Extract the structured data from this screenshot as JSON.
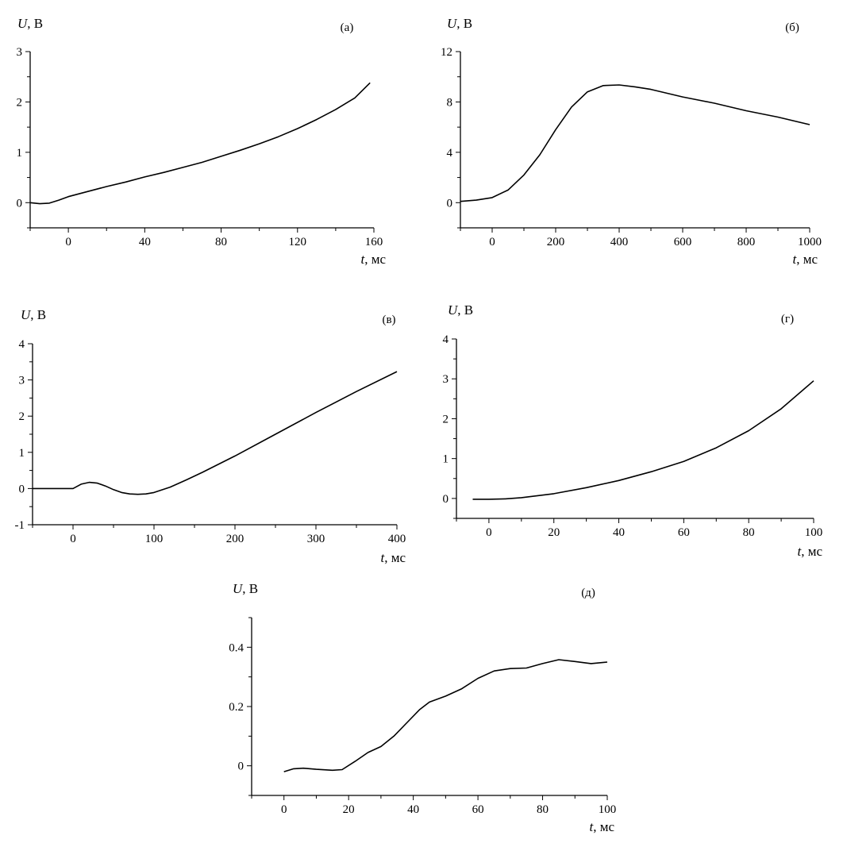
{
  "chart_data": [
    {
      "type": "line",
      "panel_label": "(а)",
      "ylabel_var": "U",
      "ylabel_unit": ", В",
      "xlabel_var": "t",
      "xlabel_unit": ", мс",
      "xlim": [
        -20,
        160
      ],
      "ylim": [
        -0.5,
        3
      ],
      "xticks": [
        0,
        40,
        80,
        120,
        160
      ],
      "yticks": [
        0,
        1,
        2,
        3
      ],
      "series": [
        {
          "x": [
            -20,
            -15,
            -10,
            -5,
            0,
            10,
            20,
            30,
            40,
            50,
            60,
            70,
            80,
            90,
            100,
            110,
            120,
            130,
            140,
            150,
            158
          ],
          "y": [
            0.0,
            -0.02,
            -0.01,
            0.05,
            0.12,
            0.22,
            0.32,
            0.41,
            0.51,
            0.6,
            0.7,
            0.8,
            0.92,
            1.04,
            1.17,
            1.31,
            1.47,
            1.65,
            1.85,
            2.08,
            2.38
          ]
        }
      ]
    },
    {
      "type": "line",
      "panel_label": "(б)",
      "ylabel_var": "U",
      "ylabel_unit": ", В",
      "xlabel_var": "t",
      "xlabel_unit": ", мс",
      "xlim": [
        -100,
        1000
      ],
      "ylim": [
        -2,
        12
      ],
      "xticks": [
        0,
        200,
        400,
        600,
        800,
        1000
      ],
      "yticks": [
        0,
        4,
        8,
        12
      ],
      "series": [
        {
          "x": [
            -100,
            -50,
            0,
            50,
            100,
            150,
            200,
            250,
            300,
            350,
            400,
            450,
            500,
            600,
            700,
            800,
            900,
            1000
          ],
          "y": [
            0.1,
            0.2,
            0.4,
            1.0,
            2.2,
            3.8,
            5.8,
            7.6,
            8.8,
            9.3,
            9.35,
            9.2,
            9.0,
            8.4,
            7.9,
            7.3,
            6.8,
            6.2
          ]
        }
      ]
    },
    {
      "type": "line",
      "panel_label": "(в)",
      "ylabel_var": "U",
      "ylabel_unit": ", В",
      "xlabel_var": "t",
      "xlabel_unit": ", мс",
      "xlim": [
        -50,
        400
      ],
      "ylim": [
        -1,
        4
      ],
      "xticks": [
        0,
        100,
        200,
        300,
        400
      ],
      "yticks": [
        -1,
        0,
        1,
        2,
        3,
        4
      ],
      "series": [
        {
          "x": [
            -50,
            0,
            10,
            20,
            30,
            40,
            50,
            60,
            70,
            80,
            90,
            100,
            120,
            140,
            160,
            200,
            250,
            300,
            350,
            400
          ],
          "y": [
            0.0,
            0.0,
            0.12,
            0.17,
            0.15,
            0.07,
            -0.03,
            -0.11,
            -0.15,
            -0.16,
            -0.15,
            -0.11,
            0.04,
            0.24,
            0.45,
            0.9,
            1.5,
            2.1,
            2.68,
            3.23
          ]
        }
      ]
    },
    {
      "type": "line",
      "panel_label": "(г)",
      "ylabel_var": "U",
      "ylabel_unit": ", В",
      "xlabel_var": "t",
      "xlabel_unit": ", мс",
      "xlim": [
        -10,
        100
      ],
      "ylim": [
        -0.5,
        4
      ],
      "xticks": [
        0,
        20,
        40,
        60,
        80,
        100
      ],
      "yticks": [
        0,
        1,
        2,
        3,
        4
      ],
      "series": [
        {
          "x": [
            -5,
            0,
            5,
            10,
            20,
            30,
            40,
            50,
            60,
            70,
            80,
            90,
            100
          ],
          "y": [
            -0.02,
            -0.02,
            -0.01,
            0.02,
            0.12,
            0.27,
            0.45,
            0.67,
            0.93,
            1.27,
            1.7,
            2.25,
            2.95
          ]
        }
      ]
    },
    {
      "type": "line",
      "panel_label": "(д)",
      "ylabel_var": "U",
      "ylabel_unit": ", В",
      "xlabel_var": "t",
      "xlabel_unit": ", мс",
      "xlim": [
        -10,
        100
      ],
      "ylim": [
        -0.1,
        0.5
      ],
      "xticks": [
        0,
        20,
        40,
        60,
        80,
        100
      ],
      "yticks": [
        0,
        0.2,
        0.4
      ],
      "series": [
        {
          "x": [
            0,
            3,
            6,
            10,
            15,
            18,
            22,
            26,
            30,
            34,
            38,
            42,
            45,
            50,
            55,
            60,
            65,
            70,
            75,
            80,
            85,
            90,
            95,
            100
          ],
          "y": [
            -0.02,
            -0.01,
            -0.008,
            -0.012,
            -0.015,
            -0.013,
            0.015,
            0.045,
            0.065,
            0.1,
            0.145,
            0.19,
            0.215,
            0.235,
            0.26,
            0.295,
            0.32,
            0.328,
            0.33,
            0.345,
            0.358,
            0.352,
            0.345,
            0.35
          ]
        }
      ]
    }
  ]
}
